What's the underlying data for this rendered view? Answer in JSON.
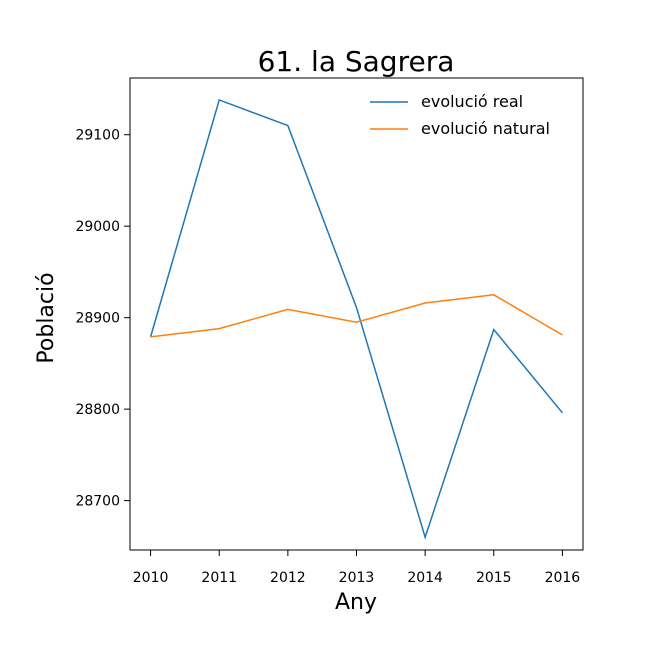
{
  "chart_data": {
    "type": "line",
    "title": "61. la Sagrera",
    "xlabel": "Any",
    "ylabel": "Població",
    "x": [
      2010,
      2011,
      2012,
      2013,
      2014,
      2015,
      2016
    ],
    "x_ticks": [
      "2010",
      "2011",
      "2012",
      "2013",
      "2014",
      "2015",
      "2016"
    ],
    "y_ticks": [
      "28700",
      "28800",
      "28900",
      "29000",
      "29100"
    ],
    "ylim": [
      28646,
      29162
    ],
    "xlim": [
      2009.7,
      2016.3
    ],
    "grid": false,
    "legend_position": "top-right",
    "series": [
      {
        "name": "evolució real",
        "color": "#1f77b4",
        "values": [
          28879,
          29138,
          29110,
          28911,
          28660,
          28887,
          28796
        ]
      },
      {
        "name": "evolució natural",
        "color": "#ff7f0e",
        "values": [
          28879,
          28888,
          28909,
          28895,
          28916,
          28925,
          28881
        ]
      }
    ]
  }
}
